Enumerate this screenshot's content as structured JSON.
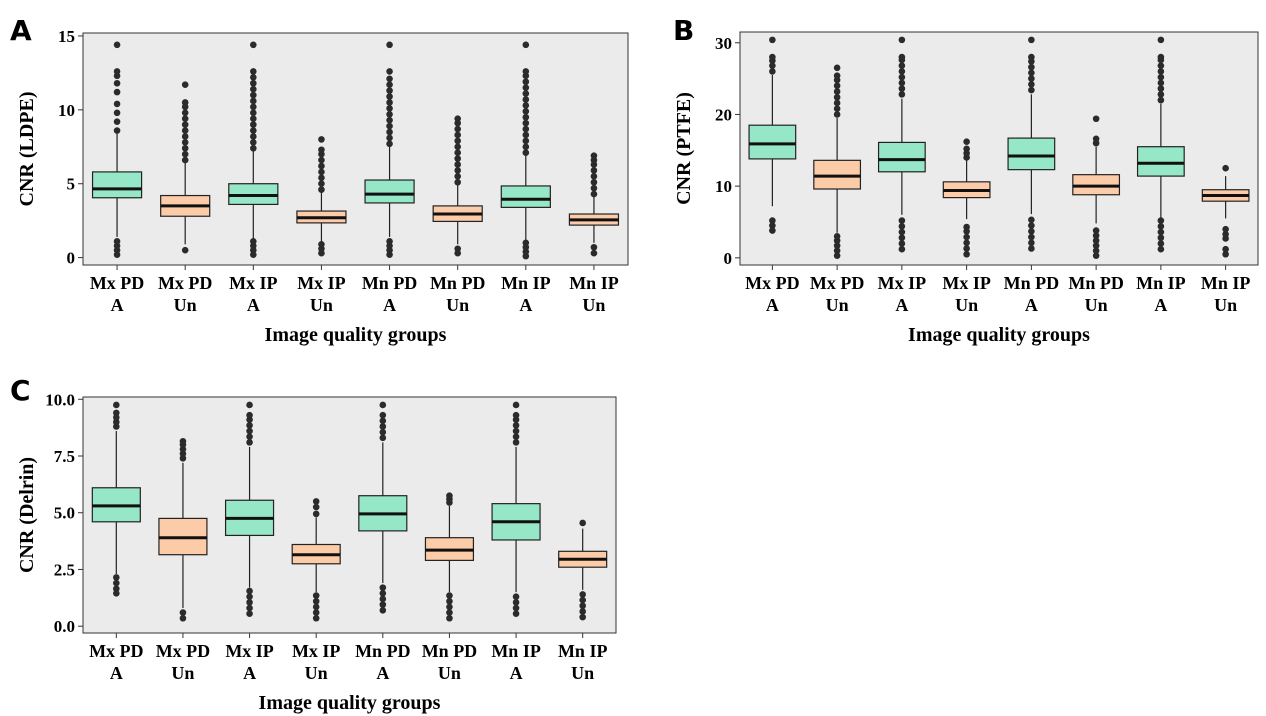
{
  "colors": {
    "A_group": "#96e6c8",
    "Un_group": "#fccba8",
    "panel_bg": "#ebebeb",
    "median": "#111111",
    "outlier": "#2b2b2b"
  },
  "chart_data": [
    {
      "type": "box",
      "panel_label": "A",
      "xlabel": "Image quality groups",
      "ylabel": "CNR (LDPE)",
      "ylim": [
        -0.5,
        15.2
      ],
      "yticks": [
        0,
        5,
        10,
        15
      ],
      "categories": [
        {
          "label": [
            "Mx PD",
            "A"
          ],
          "group": "A",
          "q1": 4.05,
          "median": 4.65,
          "q3": 5.8,
          "whisker_low": 1.4,
          "whisker_high": 8.5,
          "outliers_high": [
            8.6,
            9.2,
            9.8,
            10.4,
            11.2,
            11.8,
            12.3,
            12.6,
            14.4
          ],
          "outliers_low": [
            0.2,
            0.5,
            0.8,
            1.1
          ]
        },
        {
          "label": [
            "Mx PD",
            "Un"
          ],
          "group": "Un",
          "q1": 2.8,
          "median": 3.5,
          "q3": 4.2,
          "whisker_low": 0.9,
          "whisker_high": 6.5,
          "outliers_high": [
            6.6,
            7.0,
            7.4,
            7.8,
            8.2,
            8.6,
            9.0,
            9.4,
            9.8,
            10.2,
            10.5,
            11.7
          ],
          "outliers_low": [
            0.5
          ]
        },
        {
          "label": [
            "Mx IP",
            "A"
          ],
          "group": "A",
          "q1": 3.6,
          "median": 4.2,
          "q3": 5.0,
          "whisker_low": 1.3,
          "whisker_high": 7.3,
          "outliers_high": [
            7.4,
            7.8,
            8.2,
            8.6,
            9.0,
            9.4,
            9.8,
            10.2,
            10.6,
            11.0,
            11.4,
            11.8,
            12.2,
            12.6,
            14.4
          ],
          "outliers_low": [
            0.2,
            0.5,
            0.8,
            1.1
          ]
        },
        {
          "label": [
            "Mx IP",
            "Un"
          ],
          "group": "Un",
          "q1": 2.35,
          "median": 2.7,
          "q3": 3.15,
          "whisker_low": 1.1,
          "whisker_high": 4.5,
          "outliers_high": [
            4.6,
            5.0,
            5.4,
            5.8,
            6.2,
            6.6,
            7.0,
            7.3,
            8.0
          ],
          "outliers_low": [
            0.3,
            0.6,
            0.9
          ]
        },
        {
          "label": [
            "Mn PD",
            "A"
          ],
          "group": "A",
          "q1": 3.7,
          "median": 4.3,
          "q3": 5.25,
          "whisker_low": 1.4,
          "whisker_high": 7.6,
          "outliers_high": [
            7.7,
            8.1,
            8.5,
            8.9,
            9.3,
            9.7,
            10.1,
            10.5,
            10.9,
            11.3,
            11.7,
            12.1,
            12.6,
            14.4
          ],
          "outliers_low": [
            0.2,
            0.5,
            0.8,
            1.1
          ]
        },
        {
          "label": [
            "Mn PD",
            "Un"
          ],
          "group": "Un",
          "q1": 2.45,
          "median": 2.95,
          "q3": 3.5,
          "whisker_low": 0.9,
          "whisker_high": 5.0,
          "outliers_high": [
            5.1,
            5.5,
            5.9,
            6.3,
            6.7,
            7.1,
            7.5,
            7.9,
            8.3,
            8.7,
            9.1,
            9.4
          ],
          "outliers_low": [
            0.3,
            0.6
          ]
        },
        {
          "label": [
            "Mn IP",
            "A"
          ],
          "group": "A",
          "q1": 3.4,
          "median": 3.95,
          "q3": 4.85,
          "whisker_low": 1.2,
          "whisker_high": 7.0,
          "outliers_high": [
            7.1,
            7.5,
            7.9,
            8.3,
            8.7,
            9.1,
            9.5,
            9.9,
            10.3,
            10.7,
            11.1,
            11.5,
            11.9,
            12.3,
            12.6,
            14.4
          ],
          "outliers_low": [
            0.1,
            0.4,
            0.7,
            1.0
          ]
        },
        {
          "label": [
            "Mn IP",
            "Un"
          ],
          "group": "Un",
          "q1": 2.2,
          "median": 2.55,
          "q3": 2.95,
          "whisker_low": 1.0,
          "whisker_high": 4.1,
          "outliers_high": [
            4.3,
            4.7,
            5.1,
            5.5,
            5.9,
            6.3,
            6.6,
            6.9
          ],
          "outliers_low": [
            0.3,
            0.7
          ]
        }
      ]
    },
    {
      "type": "box",
      "panel_label": "B",
      "xlabel": "Image quality groups",
      "ylabel": "CNR (PTFE)",
      "ylim": [
        -1.0,
        31.5
      ],
      "yticks": [
        0,
        10,
        20,
        30
      ],
      "categories": [
        {
          "label": [
            "Mx PD",
            "A"
          ],
          "group": "A",
          "q1": 13.8,
          "median": 15.9,
          "q3": 18.5,
          "whisker_low": 7.2,
          "whisker_high": 25.5,
          "outliers_high": [
            26.0,
            26.8,
            27.5,
            28.0,
            30.4
          ],
          "outliers_low": [
            3.8,
            4.5,
            5.2
          ]
        },
        {
          "label": [
            "Mx PD",
            "Un"
          ],
          "group": "Un",
          "q1": 9.6,
          "median": 11.4,
          "q3": 13.6,
          "whisker_low": 3.5,
          "whisker_high": 19.5,
          "outliers_high": [
            20.0,
            20.8,
            21.6,
            22.4,
            23.2,
            24.0,
            24.8,
            25.4,
            26.5
          ],
          "outliers_low": [
            0.3,
            1.0,
            1.7,
            2.4,
            3.0
          ]
        },
        {
          "label": [
            "Mx IP",
            "A"
          ],
          "group": "A",
          "q1": 12.0,
          "median": 13.7,
          "q3": 16.1,
          "whisker_low": 6.0,
          "whisker_high": 22.2,
          "outliers_high": [
            22.8,
            23.6,
            24.4,
            25.2,
            26.0,
            26.8,
            27.6,
            28.0,
            30.4
          ],
          "outliers_low": [
            1.2,
            2.0,
            2.8,
            3.6,
            4.4,
            5.2
          ]
        },
        {
          "label": [
            "Mx IP",
            "Un"
          ],
          "group": "Un",
          "q1": 8.4,
          "median": 9.4,
          "q3": 10.6,
          "whisker_low": 5.4,
          "whisker_high": 13.6,
          "outliers_high": [
            14.0,
            14.6,
            15.2,
            16.2
          ],
          "outliers_low": [
            0.5,
            1.3,
            2.1,
            2.9,
            3.7,
            4.3
          ]
        },
        {
          "label": [
            "Mn PD",
            "A"
          ],
          "group": "A",
          "q1": 12.3,
          "median": 14.2,
          "q3": 16.7,
          "whisker_low": 6.1,
          "whisker_high": 22.8,
          "outliers_high": [
            23.4,
            24.2,
            25.0,
            25.8,
            26.6,
            27.4,
            28.0,
            30.4
          ],
          "outliers_low": [
            1.3,
            2.1,
            2.9,
            3.7,
            4.5,
            5.3
          ]
        },
        {
          "label": [
            "Mn PD",
            "Un"
          ],
          "group": "Un",
          "q1": 8.8,
          "median": 10.0,
          "q3": 11.6,
          "whisker_low": 4.8,
          "whisker_high": 15.5,
          "outliers_high": [
            16.0,
            16.6,
            19.4
          ],
          "outliers_low": [
            0.3,
            1.0,
            1.7,
            2.4,
            3.1,
            3.8
          ]
        },
        {
          "label": [
            "Mn IP",
            "A"
          ],
          "group": "A",
          "q1": 11.4,
          "median": 13.2,
          "q3": 15.5,
          "whisker_low": 5.6,
          "whisker_high": 21.5,
          "outliers_high": [
            22.0,
            22.8,
            23.6,
            24.4,
            25.2,
            26.0,
            26.8,
            27.6,
            28.0,
            30.4
          ],
          "outliers_low": [
            1.2,
            2.0,
            2.8,
            3.6,
            4.4,
            5.2
          ]
        },
        {
          "label": [
            "Mn IP",
            "Un"
          ],
          "group": "Un",
          "q1": 7.9,
          "median": 8.7,
          "q3": 9.5,
          "whisker_low": 5.5,
          "whisker_high": 11.4,
          "outliers_high": [
            12.5
          ],
          "outliers_low": [
            0.5,
            1.2,
            2.7,
            3.3,
            4.0
          ]
        }
      ]
    },
    {
      "type": "box",
      "panel_label": "C",
      "xlabel": "Image quality groups",
      "ylabel": "CNR (Delrin)",
      "ylim": [
        -0.3,
        10.1
      ],
      "yticks": [
        0.0,
        2.5,
        5.0,
        7.5,
        10.0
      ],
      "ytick_labels": [
        "0.0",
        "2.5",
        "5.0",
        "7.5",
        "10.0"
      ],
      "categories": [
        {
          "label": [
            "Mx PD",
            "A"
          ],
          "group": "A",
          "q1": 4.6,
          "median": 5.3,
          "q3": 6.1,
          "whisker_low": 2.3,
          "whisker_high": 8.6,
          "outliers_high": [
            8.8,
            9.0,
            9.2,
            9.4,
            9.75
          ],
          "outliers_low": [
            1.45,
            1.65,
            1.9,
            2.15
          ]
        },
        {
          "label": [
            "Mx PD",
            "Un"
          ],
          "group": "Un",
          "q1": 3.15,
          "median": 3.9,
          "q3": 4.75,
          "whisker_low": 0.8,
          "whisker_high": 7.2,
          "outliers_high": [
            7.4,
            7.6,
            7.8,
            8.0,
            8.15
          ],
          "outliers_low": [
            0.35,
            0.6
          ]
        },
        {
          "label": [
            "Mx IP",
            "A"
          ],
          "group": "A",
          "q1": 4.0,
          "median": 4.75,
          "q3": 5.55,
          "whisker_low": 1.7,
          "whisker_high": 7.9,
          "outliers_high": [
            8.1,
            8.35,
            8.6,
            8.85,
            9.1,
            9.3,
            9.75
          ],
          "outliers_low": [
            0.55,
            0.8,
            1.05,
            1.3,
            1.55
          ]
        },
        {
          "label": [
            "Mx IP",
            "Un"
          ],
          "group": "Un",
          "q1": 2.75,
          "median": 3.15,
          "q3": 3.6,
          "whisker_low": 1.5,
          "whisker_high": 4.8,
          "outliers_high": [
            4.95,
            5.25,
            5.5
          ],
          "outliers_low": [
            0.35,
            0.6,
            0.85,
            1.1,
            1.35
          ]
        },
        {
          "label": [
            "Mn PD",
            "A"
          ],
          "group": "A",
          "q1": 4.2,
          "median": 4.95,
          "q3": 5.75,
          "whisker_low": 1.9,
          "whisker_high": 8.1,
          "outliers_high": [
            8.3,
            8.55,
            8.8,
            9.05,
            9.3,
            9.75
          ],
          "outliers_low": [
            0.7,
            0.95,
            1.2,
            1.45,
            1.7
          ]
        },
        {
          "label": [
            "Mn PD",
            "Un"
          ],
          "group": "Un",
          "q1": 2.9,
          "median": 3.35,
          "q3": 3.9,
          "whisker_low": 1.5,
          "whisker_high": 5.3,
          "outliers_high": [
            5.45,
            5.6,
            5.75
          ],
          "outliers_low": [
            0.35,
            0.6,
            0.85,
            1.1,
            1.35
          ]
        },
        {
          "label": [
            "Mn IP",
            "A"
          ],
          "group": "A",
          "q1": 3.8,
          "median": 4.6,
          "q3": 5.4,
          "whisker_low": 1.5,
          "whisker_high": 7.9,
          "outliers_high": [
            8.1,
            8.35,
            8.6,
            8.85,
            9.1,
            9.3,
            9.75
          ],
          "outliers_low": [
            0.55,
            0.8,
            1.05,
            1.3
          ]
        },
        {
          "label": [
            "Mn IP",
            "Un"
          ],
          "group": "Un",
          "q1": 2.6,
          "median": 2.95,
          "q3": 3.3,
          "whisker_low": 1.6,
          "whisker_high": 4.3,
          "outliers_high": [
            4.55
          ],
          "outliers_low": [
            0.4,
            0.65,
            0.9,
            1.15,
            1.4
          ]
        }
      ]
    }
  ]
}
